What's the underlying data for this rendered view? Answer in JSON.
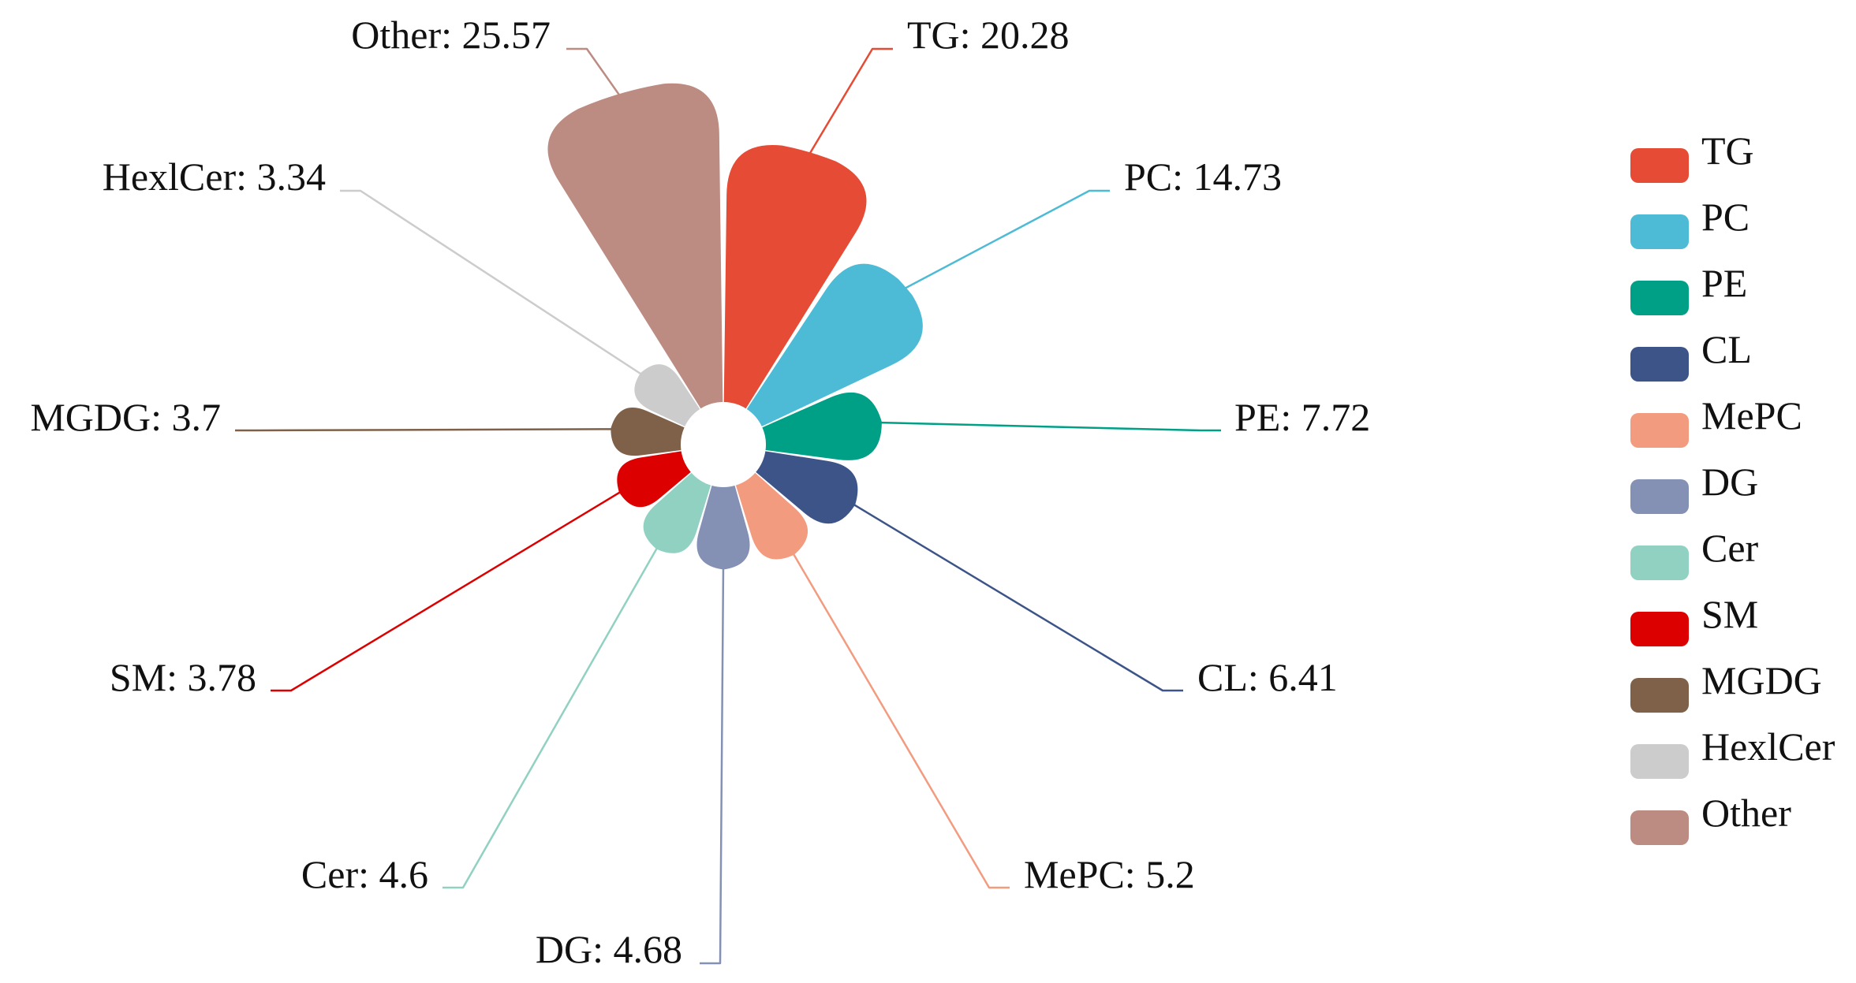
{
  "chart_data": {
    "type": "pie",
    "variant": "rose",
    "title": "",
    "legend_position": "right",
    "slices": [
      {
        "name": "TG",
        "value": 20.28,
        "color": "#E64B35",
        "label": "TG: 20.28"
      },
      {
        "name": "PC",
        "value": 14.73,
        "color": "#4DBBD5",
        "label": "PC: 14.73"
      },
      {
        "name": "PE",
        "value": 7.72,
        "color": "#00A087",
        "label": "PE: 7.72"
      },
      {
        "name": "CL",
        "value": 6.41,
        "color": "#3C5488",
        "label": "CL: 6.41"
      },
      {
        "name": "MePC",
        "value": 5.2,
        "color": "#F39B7F",
        "label": "MePC: 5.2"
      },
      {
        "name": "DG",
        "value": 4.68,
        "color": "#8491B4",
        "label": "DG: 4.68"
      },
      {
        "name": "Cer",
        "value": 4.6,
        "color": "#91D1C2",
        "label": "Cer: 4.6"
      },
      {
        "name": "SM",
        "value": 3.78,
        "color": "#DC0000",
        "label": "SM: 3.78"
      },
      {
        "name": "MGDG",
        "value": 3.7,
        "color": "#7E6148",
        "label": "MGDG: 3.7"
      },
      {
        "name": "HexlCer",
        "value": 3.34,
        "color": "#CCCCCC",
        "label": "HexlCer: 3.34"
      },
      {
        "name": "Other",
        "value": 25.57,
        "color": "#BC8B82",
        "label": "Other: 25.57"
      }
    ]
  }
}
